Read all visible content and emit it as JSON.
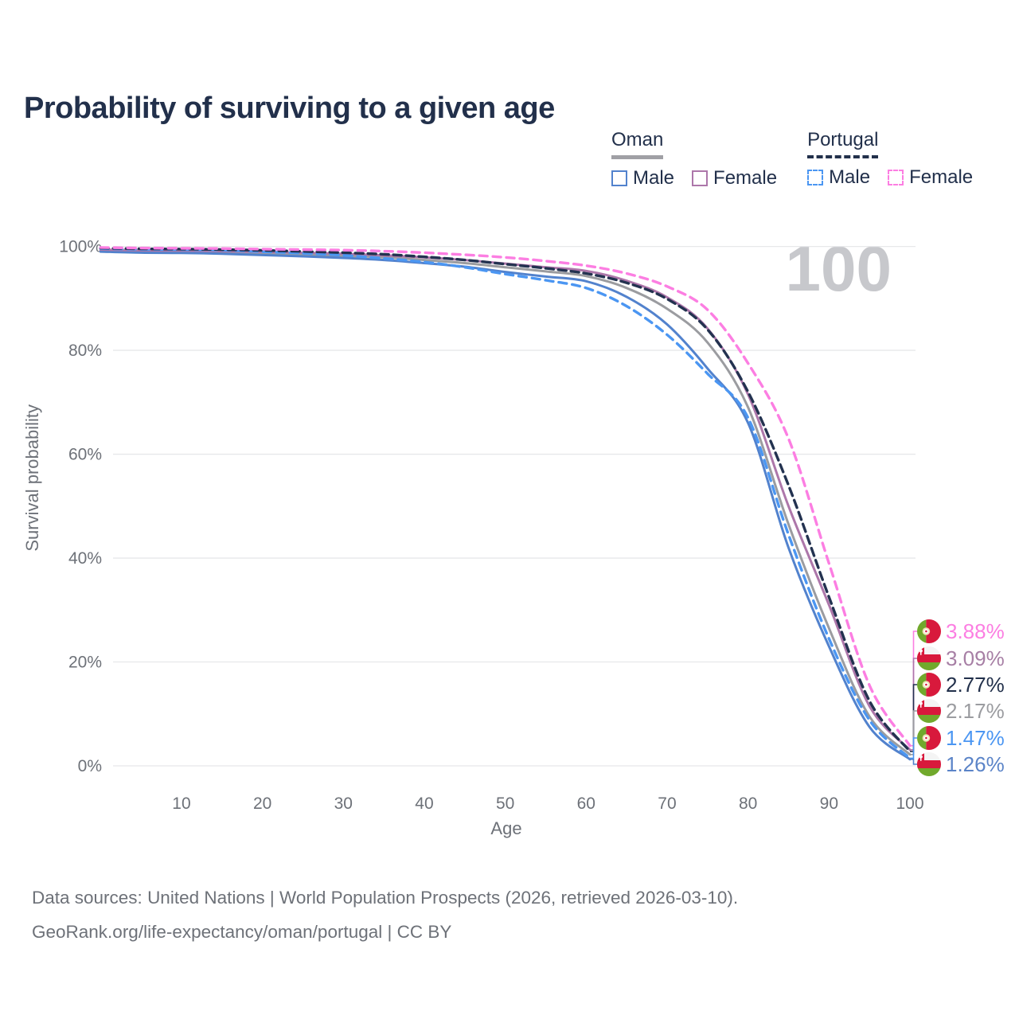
{
  "header": {
    "title": "Probability of surviving to a given age"
  },
  "watermark": {
    "text": "100"
  },
  "legend": {
    "groups": [
      {
        "label": "Oman",
        "line_style": "solid",
        "underline_color": "#a0a0a5",
        "items": [
          {
            "label": "Male",
            "color": "#5282cd"
          },
          {
            "label": "Female",
            "color": "#ad77aa"
          }
        ]
      },
      {
        "label": "Portugal",
        "line_style": "dashed",
        "underline_color": "#22304b",
        "items": [
          {
            "label": "Male",
            "color": "#4b96f2"
          },
          {
            "label": "Female",
            "color": "#fc7ee2"
          }
        ]
      }
    ]
  },
  "chart_data": {
    "type": "line",
    "title": "Probability of surviving to a given age",
    "xlabel": "Age",
    "ylabel": "Survival probability",
    "xlim": [
      0,
      100
    ],
    "ylim": [
      0,
      100
    ],
    "grid": true,
    "xticks": [
      10,
      20,
      30,
      40,
      50,
      60,
      70,
      80,
      90,
      100
    ],
    "yticks": [
      {
        "value": 0,
        "label": "0%"
      },
      {
        "value": 20,
        "label": "20%"
      },
      {
        "value": 40,
        "label": "40%"
      },
      {
        "value": 60,
        "label": "60%"
      },
      {
        "value": 80,
        "label": "80%"
      },
      {
        "value": 100,
        "label": "100%"
      }
    ],
    "x": [
      0,
      5,
      10,
      15,
      20,
      25,
      30,
      35,
      40,
      45,
      50,
      55,
      60,
      65,
      70,
      75,
      80,
      85,
      90,
      95,
      100
    ],
    "series": [
      {
        "id": "oman_total",
        "name": "Oman",
        "country": "oman",
        "sex": "total",
        "color": "#9b9ca0",
        "dash": null,
        "width": 3,
        "values": [
          99.2,
          99.0,
          98.95,
          98.85,
          98.65,
          98.45,
          98.2,
          97.9,
          97.4,
          96.8,
          96.0,
          95.2,
          94.3,
          92.0,
          88.0,
          81.5,
          69.0,
          46.5,
          26.5,
          9.5,
          2.17
        ],
        "end_label": "2.17%"
      },
      {
        "id": "oman_male",
        "name": "Oman Male",
        "country": "oman",
        "sex": "male",
        "color": "#5282cd",
        "dash": null,
        "width": 3,
        "values": [
          99.0,
          98.8,
          98.75,
          98.6,
          98.35,
          98.1,
          97.8,
          97.4,
          96.8,
          96.1,
          95.1,
          94.2,
          93.3,
          90.3,
          85.0,
          76.5,
          66.0,
          42.0,
          23.0,
          7.5,
          1.26
        ],
        "end_label": "1.26%"
      },
      {
        "id": "oman_female",
        "name": "Oman Female",
        "country": "oman",
        "sex": "female",
        "color": "#ad77aa",
        "dash": null,
        "width": 3,
        "values": [
          99.4,
          99.25,
          99.2,
          99.1,
          98.95,
          98.8,
          98.6,
          98.3,
          97.9,
          97.4,
          96.7,
          96.0,
          95.3,
          93.4,
          90.2,
          84.2,
          71.5,
          50.0,
          31.0,
          11.5,
          3.09
        ],
        "end_label": "3.09%"
      },
      {
        "id": "portugal_male",
        "name": "Portugal Male",
        "country": "portugal",
        "sex": "male",
        "color": "#4b96f2",
        "dash": "10 7",
        "width": 3.4,
        "values": [
          99.6,
          99.45,
          99.4,
          99.3,
          99.0,
          98.7,
          98.3,
          97.7,
          97.0,
          96.0,
          94.7,
          93.5,
          92.0,
          88.5,
          83.0,
          75.5,
          67.0,
          44.5,
          24.5,
          8.8,
          1.47
        ],
        "end_label": "1.47%"
      },
      {
        "id": "portugal_total",
        "name": "Portugal",
        "country": "portugal",
        "sex": "total",
        "color": "#233250",
        "dash": "10 6",
        "width": 3.4,
        "values": [
          99.7,
          99.55,
          99.5,
          99.4,
          99.25,
          99.05,
          98.8,
          98.5,
          98.0,
          97.4,
          96.6,
          95.8,
          94.8,
          93.0,
          89.9,
          84.0,
          72.0,
          54.0,
          32.5,
          12.5,
          2.77
        ],
        "end_label": "2.77%"
      },
      {
        "id": "portugal_female",
        "name": "Portugal Female",
        "country": "portugal",
        "sex": "female",
        "color": "#fc7ee2",
        "dash": "10 7",
        "width": 3.4,
        "values": [
          99.8,
          99.7,
          99.65,
          99.6,
          99.5,
          99.4,
          99.3,
          99.1,
          98.8,
          98.4,
          97.9,
          97.2,
          96.3,
          94.8,
          92.3,
          87.8,
          77.5,
          63.0,
          39.0,
          15.5,
          3.88
        ],
        "end_label": "3.88%"
      }
    ],
    "legend_position": "top-right"
  },
  "end_labels": [
    {
      "series": "portugal_female",
      "value": "3.88%",
      "flag": "portugal",
      "color": "#fc7ee2"
    },
    {
      "series": "oman_female",
      "value": "3.09%",
      "flag": "oman",
      "color": "#a77fa5"
    },
    {
      "series": "portugal_total",
      "value": "2.77%",
      "flag": "portugal",
      "color": "#22304b"
    },
    {
      "series": "oman_total",
      "value": "2.17%",
      "flag": "oman",
      "color": "#9b9ca0"
    },
    {
      "series": "portugal_male",
      "value": "1.47%",
      "flag": "portugal",
      "color": "#4b96f2"
    },
    {
      "series": "oman_male",
      "value": "1.26%",
      "flag": "oman",
      "color": "#5b84c8"
    }
  ],
  "footer": {
    "line1": "Data sources: United Nations | World Population Prospects (2026, retrieved 2026-03-10).",
    "line2": "GeoRank.org/life-expectancy/oman/portugal | CC BY"
  },
  "colors": {
    "title": "#22304b",
    "axis_text": "#6d7178",
    "gridline": "#e7e8ea",
    "watermark": "#c7c8cc",
    "background": "#ffffff",
    "flag_oman_red": "#d8193c",
    "flag_oman_green": "#71a92c",
    "flag_portugal_green": "#71a92c",
    "flag_portugal_red": "#d8193c"
  }
}
